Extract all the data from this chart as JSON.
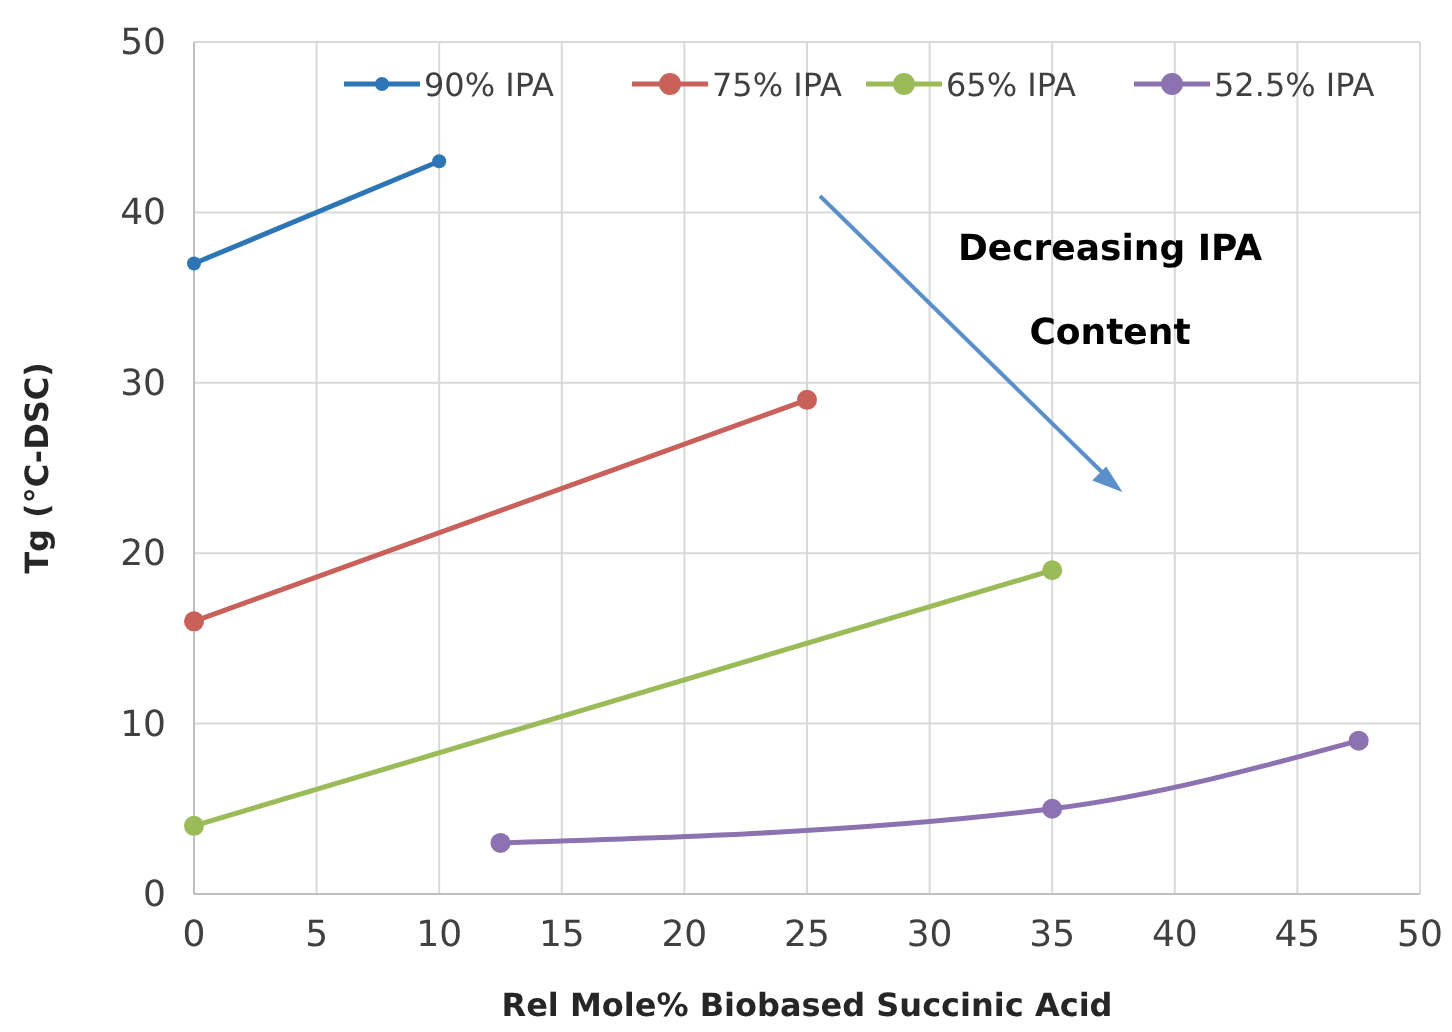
{
  "chart_data": {
    "type": "line",
    "xlabel": "Rel Mole% Biobased Succinic Acid",
    "ylabel": "Tg (°C-DSC)",
    "xlim": [
      0,
      50
    ],
    "xticks": [
      0,
      5,
      10,
      15,
      20,
      25,
      30,
      35,
      40,
      45,
      50
    ],
    "ylim": [
      0,
      50
    ],
    "yticks": [
      0,
      10,
      20,
      30,
      40,
      50
    ],
    "grid": true,
    "legend": "top",
    "marker": "circle",
    "series": [
      {
        "name": "90% IPA",
        "color": "#2e75b6",
        "x": [
          0,
          10
        ],
        "values": [
          37,
          43
        ]
      },
      {
        "name": "75% IPA",
        "color": "#c9605a",
        "x": [
          0,
          25
        ],
        "values": [
          16,
          29
        ]
      },
      {
        "name": "65% IPA",
        "color": "#9bbb59",
        "x": [
          0,
          35
        ],
        "values": [
          4,
          19
        ]
      },
      {
        "name": "52.5% IPA",
        "color": "#8c72b0",
        "x": [
          12.5,
          35,
          47.5
        ],
        "values": [
          3,
          5,
          9
        ]
      }
    ],
    "annotations": [
      "Decreasing IPA",
      "Content"
    ]
  }
}
